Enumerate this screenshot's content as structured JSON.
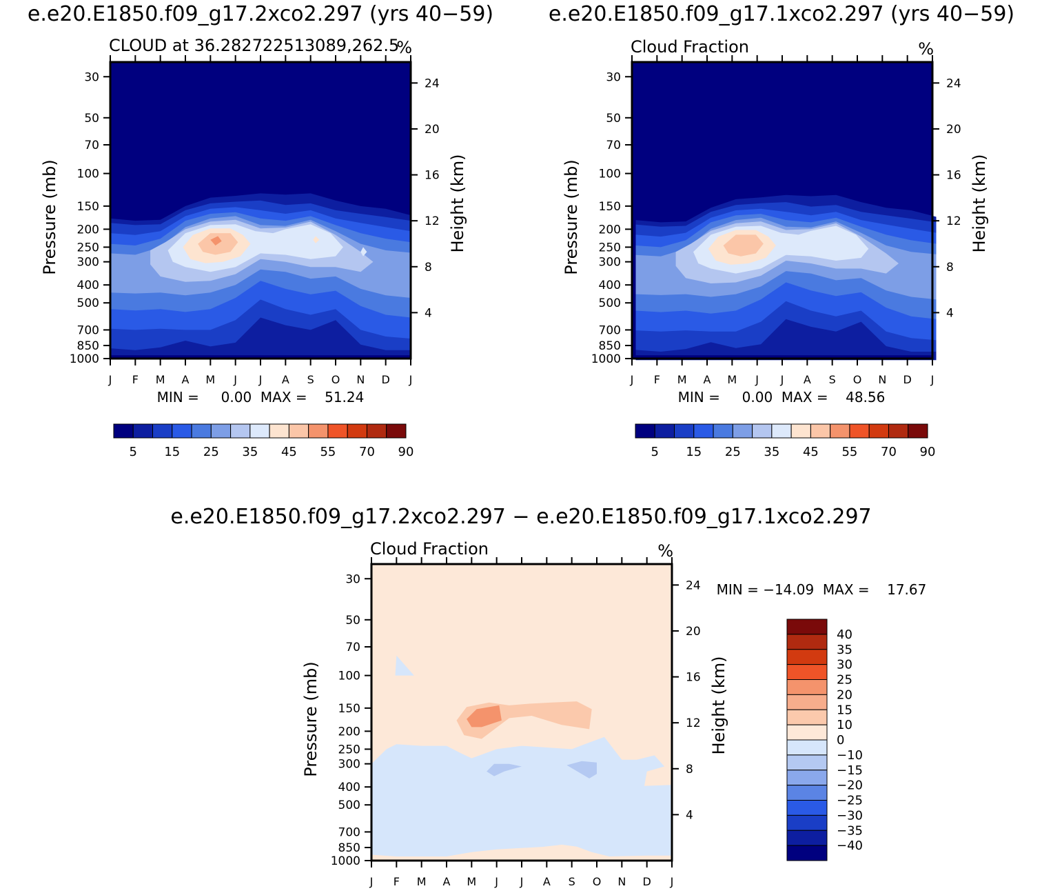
{
  "chart_data": [
    {
      "type": "heatmap",
      "case_title": "e.e20.E1850.f09_g17.2xco2.297 (yrs 40−59)",
      "field_label": "CLOUD at 36.282722513089,262.5",
      "units": "%",
      "ylabel": "Pressure (mb)",
      "ylabel_right": "Height (km)",
      "xticks": [
        "J",
        "F",
        "M",
        "A",
        "M",
        "J",
        "J",
        "A",
        "S",
        "O",
        "N",
        "D",
        "J"
      ],
      "yticks": [
        30,
        50,
        70,
        100,
        150,
        200,
        250,
        300,
        400,
        500,
        700,
        850,
        1000
      ],
      "yticks_right": [
        24,
        20,
        16,
        12,
        8,
        4
      ],
      "ylim": [
        1000,
        25
      ],
      "stats_text": "MIN =     0.00  MAX =    51.24",
      "min": 0.0,
      "max": 51.24,
      "contour_levels": [
        5,
        10,
        15,
        20,
        25,
        30,
        35,
        40,
        45,
        50,
        55,
        60,
        70,
        80,
        90
      ],
      "colorbar_labels": [
        "5",
        "15",
        "25",
        "35",
        "45",
        "55",
        "70",
        "90"
      ],
      "colorbar_colors": [
        "#00007f",
        "#0d1ea0",
        "#1a3ec6",
        "#2a5ae6",
        "#4a7ae0",
        "#7d9ee6",
        "#b4c6f0",
        "#dde9fb",
        "#fde4d0",
        "#fbc6a8",
        "#f4936c",
        "#ef5428",
        "#d23a10",
        "#b02a10",
        "#7a0a0a"
      ],
      "peak": {
        "month": "May",
        "pressure_mb": 220,
        "value_range": "50-55"
      }
    },
    {
      "type": "heatmap",
      "case_title": "e.e20.E1850.f09_g17.1xco2.297 (yrs 40−59)",
      "field_label": "Cloud Fraction",
      "units": "%",
      "ylabel": "Pressure (mb)",
      "ylabel_right": "Height (km)",
      "xticks": [
        "J",
        "F",
        "M",
        "A",
        "M",
        "J",
        "J",
        "A",
        "S",
        "O",
        "N",
        "D",
        "J"
      ],
      "yticks": [
        30,
        50,
        70,
        100,
        150,
        200,
        250,
        300,
        400,
        500,
        700,
        850,
        1000
      ],
      "yticks_right": [
        24,
        20,
        16,
        12,
        8,
        4
      ],
      "ylim": [
        1000,
        25
      ],
      "stats_text": "MIN =     0.00  MAX =    48.56",
      "min": 0.0,
      "max": 48.56,
      "contour_levels": [
        5,
        10,
        15,
        20,
        25,
        30,
        35,
        40,
        45,
        50,
        55,
        60,
        70,
        80,
        90
      ],
      "colorbar_labels": [
        "5",
        "15",
        "25",
        "35",
        "45",
        "55",
        "70",
        "90"
      ],
      "colorbar_colors": [
        "#00007f",
        "#0d1ea0",
        "#1a3ec6",
        "#2a5ae6",
        "#4a7ae0",
        "#7d9ee6",
        "#b4c6f0",
        "#dde9fb",
        "#fde4d0",
        "#fbc6a8",
        "#f4936c",
        "#ef5428",
        "#d23a10",
        "#b02a10",
        "#7a0a0a"
      ],
      "peak": {
        "month": "May-Jun",
        "pressure_mb": 230,
        "value_range": "45-50"
      }
    },
    {
      "type": "heatmap",
      "case_title": "e.e20.E1850.f09_g17.2xco2.297 − e.e20.E1850.f09_g17.1xco2.297",
      "field_label": "Cloud Fraction",
      "units": "%",
      "ylabel": "Pressure (mb)",
      "ylabel_right": "Height (km)",
      "xticks": [
        "J",
        "F",
        "M",
        "A",
        "M",
        "J",
        "J",
        "A",
        "S",
        "O",
        "N",
        "D",
        "J"
      ],
      "yticks": [
        30,
        50,
        70,
        100,
        150,
        200,
        250,
        300,
        400,
        500,
        700,
        850,
        1000
      ],
      "yticks_right": [
        24,
        20,
        16,
        12,
        8,
        4
      ],
      "ylim": [
        1000,
        25
      ],
      "stats_text": "MIN = −14.09  MAX =    17.67",
      "min": -14.09,
      "max": 17.67,
      "contour_levels": [
        -40,
        -35,
        -30,
        -25,
        -20,
        -15,
        -10,
        0,
        10,
        15,
        20,
        25,
        30,
        35,
        40
      ],
      "colorbar_labels": [
        "40",
        "35",
        "30",
        "25",
        "20",
        "15",
        "10",
        "0",
        "−10",
        "−15",
        "−20",
        "−25",
        "−30",
        "−35",
        "−40"
      ],
      "colorbar_colors": [
        "#7a0a0a",
        "#b02a10",
        "#d23a10",
        "#ef5428",
        "#f4936c",
        "#f7ad8c",
        "#fbc9ac",
        "#fde8d8",
        "#d6e6fb",
        "#b4c9f2",
        "#8aa8ec",
        "#5b84e4",
        "#2a5ae6",
        "#1a3ec6",
        "#0d1ea0",
        "#00007f"
      ],
      "features": [
        {
          "label": "positive max",
          "month": "May",
          "pressure_mb": 170,
          "value_range": "15-20"
        },
        {
          "label": "negative min",
          "month": "Sep",
          "pressure_mb": 320,
          "value_range": "-10 to -15"
        }
      ]
    }
  ]
}
